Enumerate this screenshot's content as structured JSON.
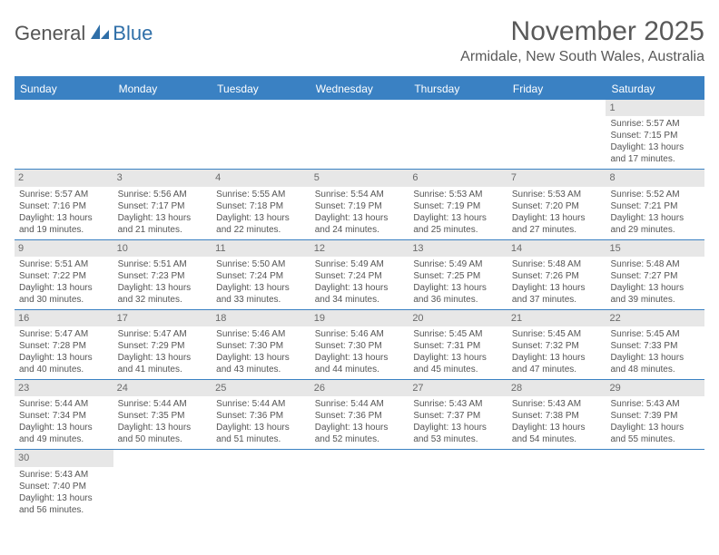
{
  "logo": {
    "text1": "General",
    "text2": "Blue"
  },
  "title": "November 2025",
  "location": "Armidale, New South Wales, Australia",
  "colors": {
    "accent": "#3a81c3",
    "dayHeaderBg": "#e7e7e7",
    "textMuted": "#595959"
  },
  "weekdays": [
    "Sunday",
    "Monday",
    "Tuesday",
    "Wednesday",
    "Thursday",
    "Friday",
    "Saturday"
  ],
  "startOffset": 6,
  "days": [
    {
      "n": 1,
      "sunrise": "5:57 AM",
      "sunset": "7:15 PM",
      "dlH": 13,
      "dlM": 17
    },
    {
      "n": 2,
      "sunrise": "5:57 AM",
      "sunset": "7:16 PM",
      "dlH": 13,
      "dlM": 19
    },
    {
      "n": 3,
      "sunrise": "5:56 AM",
      "sunset": "7:17 PM",
      "dlH": 13,
      "dlM": 21
    },
    {
      "n": 4,
      "sunrise": "5:55 AM",
      "sunset": "7:18 PM",
      "dlH": 13,
      "dlM": 22
    },
    {
      "n": 5,
      "sunrise": "5:54 AM",
      "sunset": "7:19 PM",
      "dlH": 13,
      "dlM": 24
    },
    {
      "n": 6,
      "sunrise": "5:53 AM",
      "sunset": "7:19 PM",
      "dlH": 13,
      "dlM": 25
    },
    {
      "n": 7,
      "sunrise": "5:53 AM",
      "sunset": "7:20 PM",
      "dlH": 13,
      "dlM": 27
    },
    {
      "n": 8,
      "sunrise": "5:52 AM",
      "sunset": "7:21 PM",
      "dlH": 13,
      "dlM": 29
    },
    {
      "n": 9,
      "sunrise": "5:51 AM",
      "sunset": "7:22 PM",
      "dlH": 13,
      "dlM": 30
    },
    {
      "n": 10,
      "sunrise": "5:51 AM",
      "sunset": "7:23 PM",
      "dlH": 13,
      "dlM": 32
    },
    {
      "n": 11,
      "sunrise": "5:50 AM",
      "sunset": "7:24 PM",
      "dlH": 13,
      "dlM": 33
    },
    {
      "n": 12,
      "sunrise": "5:49 AM",
      "sunset": "7:24 PM",
      "dlH": 13,
      "dlM": 34
    },
    {
      "n": 13,
      "sunrise": "5:49 AM",
      "sunset": "7:25 PM",
      "dlH": 13,
      "dlM": 36
    },
    {
      "n": 14,
      "sunrise": "5:48 AM",
      "sunset": "7:26 PM",
      "dlH": 13,
      "dlM": 37
    },
    {
      "n": 15,
      "sunrise": "5:48 AM",
      "sunset": "7:27 PM",
      "dlH": 13,
      "dlM": 39
    },
    {
      "n": 16,
      "sunrise": "5:47 AM",
      "sunset": "7:28 PM",
      "dlH": 13,
      "dlM": 40
    },
    {
      "n": 17,
      "sunrise": "5:47 AM",
      "sunset": "7:29 PM",
      "dlH": 13,
      "dlM": 41
    },
    {
      "n": 18,
      "sunrise": "5:46 AM",
      "sunset": "7:30 PM",
      "dlH": 13,
      "dlM": 43
    },
    {
      "n": 19,
      "sunrise": "5:46 AM",
      "sunset": "7:30 PM",
      "dlH": 13,
      "dlM": 44
    },
    {
      "n": 20,
      "sunrise": "5:45 AM",
      "sunset": "7:31 PM",
      "dlH": 13,
      "dlM": 45
    },
    {
      "n": 21,
      "sunrise": "5:45 AM",
      "sunset": "7:32 PM",
      "dlH": 13,
      "dlM": 47
    },
    {
      "n": 22,
      "sunrise": "5:45 AM",
      "sunset": "7:33 PM",
      "dlH": 13,
      "dlM": 48
    },
    {
      "n": 23,
      "sunrise": "5:44 AM",
      "sunset": "7:34 PM",
      "dlH": 13,
      "dlM": 49
    },
    {
      "n": 24,
      "sunrise": "5:44 AM",
      "sunset": "7:35 PM",
      "dlH": 13,
      "dlM": 50
    },
    {
      "n": 25,
      "sunrise": "5:44 AM",
      "sunset": "7:36 PM",
      "dlH": 13,
      "dlM": 51
    },
    {
      "n": 26,
      "sunrise": "5:44 AM",
      "sunset": "7:36 PM",
      "dlH": 13,
      "dlM": 52
    },
    {
      "n": 27,
      "sunrise": "5:43 AM",
      "sunset": "7:37 PM",
      "dlH": 13,
      "dlM": 53
    },
    {
      "n": 28,
      "sunrise": "5:43 AM",
      "sunset": "7:38 PM",
      "dlH": 13,
      "dlM": 54
    },
    {
      "n": 29,
      "sunrise": "5:43 AM",
      "sunset": "7:39 PM",
      "dlH": 13,
      "dlM": 55
    },
    {
      "n": 30,
      "sunrise": "5:43 AM",
      "sunset": "7:40 PM",
      "dlH": 13,
      "dlM": 56
    }
  ],
  "labels": {
    "sunrise": "Sunrise:",
    "sunset": "Sunset:",
    "daylightPrefix": "Daylight:",
    "hoursWord": "hours",
    "andWord": "and",
    "minutesWord": "minutes."
  }
}
